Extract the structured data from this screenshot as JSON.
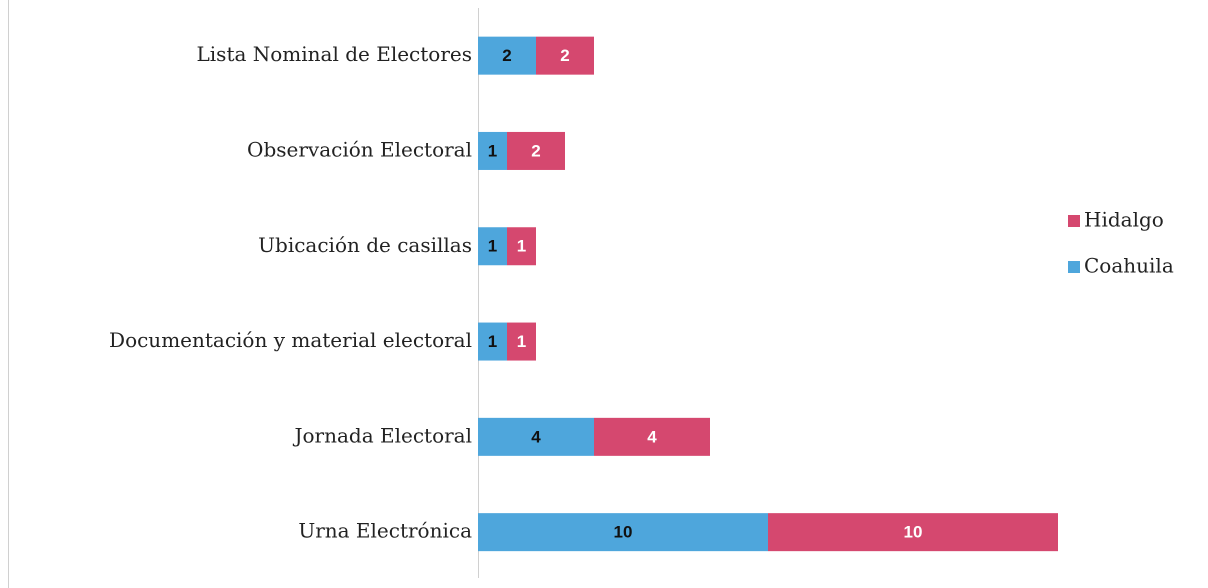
{
  "chart_data": {
    "type": "stacked_barh",
    "categories": [
      "Lista Nominal de Electores",
      "Observación Electoral",
      "Ubicación de casillas",
      "Documentación y material electoral",
      "Jornada Electoral",
      "Urna Electrónica"
    ],
    "series": [
      {
        "name": "Coahuila",
        "color": "#4ea6dc",
        "values": [
          2,
          1,
          1,
          1,
          4,
          10
        ]
      },
      {
        "name": "Hidalgo",
        "color": "#d5486f",
        "values": [
          2,
          2,
          1,
          1,
          4,
          10
        ]
      }
    ],
    "legend": "right"
  }
}
